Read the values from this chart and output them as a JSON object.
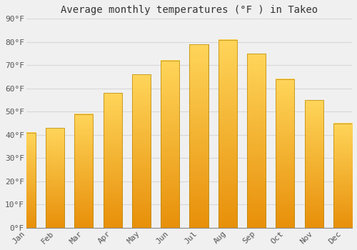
{
  "months": [
    "Jan",
    "Feb",
    "Mar",
    "Apr",
    "May",
    "Jun",
    "Jul",
    "Aug",
    "Sep",
    "Oct",
    "Nov",
    "Dec"
  ],
  "values": [
    41,
    43,
    49,
    58,
    66,
    72,
    79,
    81,
    75,
    64,
    55,
    45
  ],
  "bar_color_top": "#FFD04A",
  "bar_color_bottom": "#FFA500",
  "bar_edge_color": "#B8860B",
  "title": "Average monthly temperatures (°F ) in Takeo",
  "ylim": [
    0,
    90
  ],
  "yticks": [
    0,
    10,
    20,
    30,
    40,
    50,
    60,
    70,
    80,
    90
  ],
  "background_color": "#f0f0f0",
  "grid_color": "#d8d8d8",
  "title_fontsize": 10,
  "tick_fontsize": 8,
  "font_family": "monospace"
}
